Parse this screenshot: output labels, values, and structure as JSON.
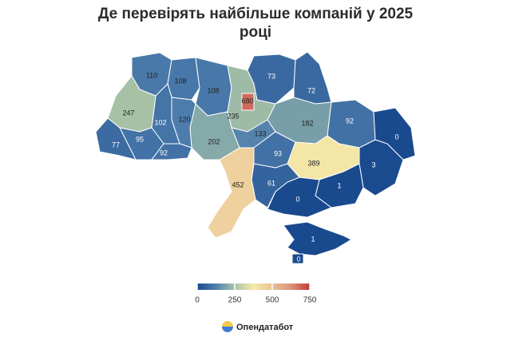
{
  "title": "Де перевірять найбільше компаній у 2025 році",
  "map": {
    "values": [
      110,
      108,
      108,
      680,
      235,
      73,
      72,
      182,
      92,
      0,
      3,
      389,
      1,
      0,
      1,
      0,
      61,
      133,
      93,
      452,
      202,
      120,
      102,
      247,
      95,
      92,
      77
    ],
    "colorscale": {
      "range": [
        0,
        750
      ],
      "ticks": [
        0,
        250,
        500,
        750
      ],
      "colors": [
        "#1a4a8e",
        "#4f7fad",
        "#a9c3a6",
        "#f5eaa8",
        "#e9c297",
        "#dc9177",
        "#c0393b"
      ]
    }
  },
  "footer": {
    "brand": "Опендатабот"
  }
}
